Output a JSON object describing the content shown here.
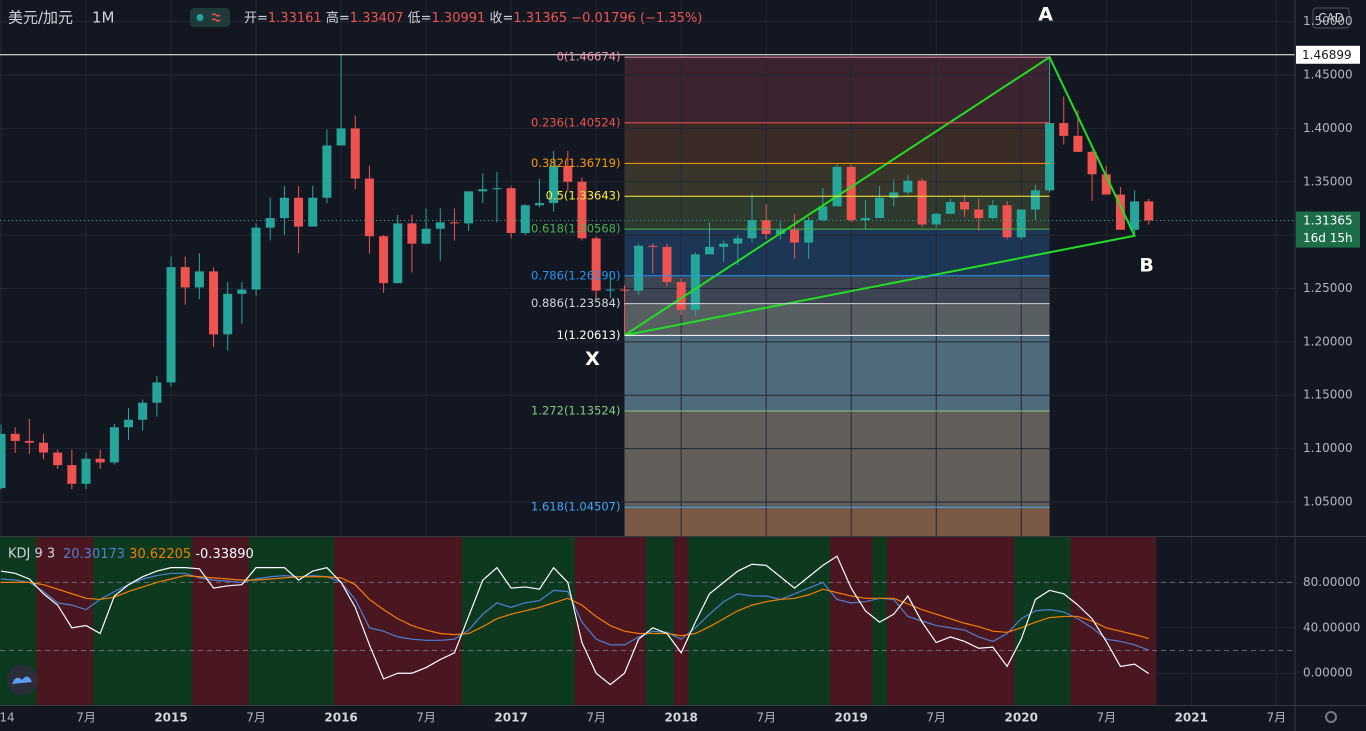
{
  "header": {
    "symbol": "美元/加元",
    "interval": "1M",
    "ohlc_labels": [
      "开=",
      "高=",
      "低=",
      "收="
    ],
    "change": "−0.01796 (−1.35%)"
  },
  "chart": {
    "type": "candlestick",
    "up_color": "#26a69a",
    "down_color": "#ef5350",
    "candles": [
      [
        1.063,
        1.1224,
        1.0615,
        1.1138
      ],
      [
        1.1138,
        1.12,
        1.096,
        1.1072
      ],
      [
        1.1072,
        1.1278,
        1.095,
        1.1055
      ],
      [
        1.1055,
        1.114,
        1.09,
        1.0963
      ],
      [
        1.0963,
        1.099,
        1.081,
        1.0845
      ],
      [
        1.0845,
        1.099,
        1.062,
        1.067
      ],
      [
        1.067,
        1.096,
        1.062,
        1.0905
      ],
      [
        1.0905,
        1.099,
        1.081,
        1.087
      ],
      [
        1.087,
        1.123,
        1.085,
        1.12
      ],
      [
        1.12,
        1.138,
        1.108,
        1.127
      ],
      [
        1.127,
        1.146,
        1.117,
        1.143
      ],
      [
        1.143,
        1.168,
        1.13,
        1.162
      ],
      [
        1.162,
        1.28,
        1.158,
        1.27
      ],
      [
        1.27,
        1.28,
        1.235,
        1.251
      ],
      [
        1.251,
        1.283,
        1.24,
        1.266
      ],
      [
        1.266,
        1.27,
        1.195,
        1.207
      ],
      [
        1.207,
        1.256,
        1.192,
        1.245
      ],
      [
        1.245,
        1.256,
        1.217,
        1.249
      ],
      [
        1.249,
        1.311,
        1.243,
        1.307
      ],
      [
        1.307,
        1.335,
        1.295,
        1.316
      ],
      [
        1.316,
        1.346,
        1.3,
        1.335
      ],
      [
        1.335,
        1.346,
        1.283,
        1.308
      ],
      [
        1.308,
        1.346,
        1.308,
        1.335
      ],
      [
        1.335,
        1.399,
        1.33,
        1.384
      ],
      [
        1.384,
        1.469,
        1.384,
        1.4
      ],
      [
        1.4,
        1.412,
        1.343,
        1.353
      ],
      [
        1.353,
        1.365,
        1.283,
        1.299
      ],
      [
        1.299,
        1.3,
        1.246,
        1.255
      ],
      [
        1.255,
        1.319,
        1.255,
        1.311
      ],
      [
        1.311,
        1.319,
        1.265,
        1.292
      ],
      [
        1.292,
        1.325,
        1.292,
        1.306
      ],
      [
        1.306,
        1.325,
        1.276,
        1.312
      ],
      [
        1.312,
        1.325,
        1.295,
        1.311
      ],
      [
        1.311,
        1.34,
        1.304,
        1.341
      ],
      [
        1.341,
        1.358,
        1.33,
        1.343
      ],
      [
        1.343,
        1.359,
        1.312,
        1.344
      ],
      [
        1.344,
        1.346,
        1.297,
        1.302
      ],
      [
        1.302,
        1.329,
        1.3,
        1.328
      ],
      [
        1.328,
        1.353,
        1.326,
        1.33
      ],
      [
        1.33,
        1.379,
        1.322,
        1.365
      ],
      [
        1.365,
        1.379,
        1.342,
        1.35
      ],
      [
        1.35,
        1.354,
        1.295,
        1.297
      ],
      [
        1.297,
        1.299,
        1.241,
        1.248
      ],
      [
        1.248,
        1.266,
        1.241,
        1.249
      ],
      [
        1.249,
        1.253,
        1.2061,
        1.248
      ],
      [
        1.248,
        1.292,
        1.244,
        1.29
      ],
      [
        1.29,
        1.292,
        1.264,
        1.289
      ],
      [
        1.289,
        1.292,
        1.252,
        1.256
      ],
      [
        1.256,
        1.26,
        1.225,
        1.23
      ],
      [
        1.23,
        1.284,
        1.225,
        1.282
      ],
      [
        1.282,
        1.312,
        1.282,
        1.289
      ],
      [
        1.289,
        1.295,
        1.275,
        1.292
      ],
      [
        1.292,
        1.3,
        1.272,
        1.297
      ],
      [
        1.297,
        1.339,
        1.293,
        1.314
      ],
      [
        1.314,
        1.329,
        1.296,
        1.301
      ],
      [
        1.301,
        1.313,
        1.296,
        1.305
      ],
      [
        1.305,
        1.32,
        1.278,
        1.293
      ],
      [
        1.293,
        1.317,
        1.278,
        1.314
      ],
      [
        1.314,
        1.344,
        1.313,
        1.327
      ],
      [
        1.327,
        1.366,
        1.327,
        1.364
      ],
      [
        1.364,
        1.366,
        1.312,
        1.314
      ],
      [
        1.314,
        1.333,
        1.306,
        1.316
      ],
      [
        1.316,
        1.346,
        1.316,
        1.335
      ],
      [
        1.335,
        1.352,
        1.327,
        1.34
      ],
      [
        1.34,
        1.356,
        1.338,
        1.351
      ],
      [
        1.351,
        1.353,
        1.308,
        1.31
      ],
      [
        1.31,
        1.321,
        1.307,
        1.32
      ],
      [
        1.32,
        1.334,
        1.32,
        1.331
      ],
      [
        1.331,
        1.338,
        1.317,
        1.324
      ],
      [
        1.324,
        1.334,
        1.304,
        1.316
      ],
      [
        1.316,
        1.333,
        1.315,
        1.328
      ],
      [
        1.328,
        1.332,
        1.296,
        1.298
      ],
      [
        1.298,
        1.324,
        1.296,
        1.324
      ],
      [
        1.324,
        1.347,
        1.314,
        1.342
      ],
      [
        1.342,
        1.4667,
        1.34,
        1.405
      ],
      [
        1.405,
        1.43,
        1.385,
        1.393
      ],
      [
        1.393,
        1.417,
        1.378,
        1.378
      ],
      [
        1.378,
        1.38,
        1.332,
        1.357
      ],
      [
        1.357,
        1.365,
        1.338,
        1.338
      ],
      [
        1.338,
        1.345,
        1.305,
        1.305
      ],
      [
        1.305,
        1.342,
        1.2994,
        1.3316
      ],
      [
        1.33161,
        1.33407,
        1.30991,
        1.31365
      ]
    ],
    "ylim": [
      1.0181,
      1.5203
    ],
    "yticks": [
      {
        "value": 1.5,
        "label": "1.50000"
      },
      {
        "value": 1.45,
        "label": "1.45000"
      },
      {
        "value": 1.4,
        "label": "1.40000"
      },
      {
        "value": 1.35,
        "label": "1.35000"
      },
      {
        "value": 1.3,
        "label": "1.30000"
      },
      {
        "value": 1.25,
        "label": "1.25000"
      },
      {
        "value": 1.2,
        "label": "1.20000"
      },
      {
        "value": 1.15,
        "label": "1.15000"
      },
      {
        "value": 1.1,
        "label": "1.10000"
      },
      {
        "value": 1.05,
        "label": "1.05000"
      }
    ],
    "xticks": [
      {
        "value": 0,
        "label": "14"
      },
      {
        "value": 6,
        "label": "7月"
      },
      {
        "value": 12,
        "label": "2015"
      },
      {
        "value": 18,
        "label": "7月"
      },
      {
        "value": 24,
        "label": "2016"
      },
      {
        "value": 30,
        "label": "7月"
      },
      {
        "value": 36,
        "label": "2017"
      },
      {
        "value": 42,
        "label": "7月"
      },
      {
        "value": 48,
        "label": "2018"
      },
      {
        "value": 54,
        "label": "7月"
      },
      {
        "value": 60,
        "label": "2019"
      },
      {
        "value": 66,
        "label": "7月"
      },
      {
        "value": 72,
        "label": "2020"
      },
      {
        "value": 78,
        "label": "7月"
      },
      {
        "value": 84,
        "label": "2021"
      },
      {
        "value": 90,
        "label": "7月"
      }
    ],
    "currency": "CAD",
    "crosshair": 1.46899,
    "countdown": "16d 15h",
    "fib": {
      "start": 44,
      "end": 74,
      "below_fill": "#7a5a46",
      "levels": [
        {
          "label": "0(1.46674)",
          "value": 1.46674,
          "color": "#f48fb1",
          "fill": "#3b2330"
        },
        {
          "label": "0.236(1.40524)",
          "value": 1.40524,
          "color": "#f05350",
          "fill": "#3b2330"
        },
        {
          "label": "0.382(1.36719)",
          "value": 1.36719,
          "color": "#ff9800",
          "fill": "#3a2b26"
        },
        {
          "label": "0.5(1.33643)",
          "value": 1.33643,
          "color": "#ffeb3b",
          "fill": "#38362a"
        },
        {
          "label": "0.618(1.30568)",
          "value": 1.30568,
          "color": "#4caf50",
          "fill": "#2e3a2d"
        },
        {
          "label": "0.786(1.26190)",
          "value": 1.2619,
          "color": "#2196f3",
          "fill": "#1d3655"
        },
        {
          "label": "0.886(1.23584)",
          "value": 1.23584,
          "color": "#d1d4dc",
          "fill": "#3d4552"
        },
        {
          "label": "1(1.20613)",
          "value": 1.20613,
          "color": "#ffffff",
          "fill": "#585f63"
        },
        {
          "label": "1.272(1.13524)",
          "value": 1.13524,
          "color": "#81c784",
          "fill": "#4f6b7b"
        },
        {
          "label": "1.618(1.04507)",
          "value": 1.04507,
          "color": "#42a5f5",
          "fill": "#625e59"
        }
      ]
    },
    "pattern": {
      "color": "#22dd22",
      "points": [
        {
          "label": "X",
          "index": 44,
          "value": 1.20613
        },
        {
          "label": "A",
          "index": 74,
          "value": 1.46674
        },
        {
          "label": "B",
          "index": 80,
          "value": 1.2994
        }
      ]
    },
    "kdj": {
      "title": "KDJ 9 3",
      "header_values": [
        "20.30173",
        "30.62205",
        "-0.33890"
      ],
      "ylim": [
        -28,
        120
      ],
      "yticks": [
        {
          "value": 80,
          "label": "80.00000"
        },
        {
          "value": 40,
          "label": "40.00000"
        },
        {
          "value": 0,
          "label": "0.00000"
        }
      ],
      "bands": [
        80,
        20
      ],
      "up_fill": "#0d3a1f",
      "down_fill": "#4a1620",
      "series": [
        {
          "color": "#4d7fd6",
          "values": [
            83,
            82,
            80,
            72,
            62,
            60,
            56,
            65,
            72,
            78,
            83,
            86,
            88,
            88,
            84,
            82,
            81,
            80,
            83,
            85,
            86,
            85,
            86,
            85,
            80,
            65,
            40,
            37,
            32,
            30,
            29,
            29,
            30,
            38,
            52,
            62,
            58,
            62,
            64,
            73,
            72,
            45,
            30,
            25,
            25,
            32,
            37,
            36,
            30,
            40,
            52,
            63,
            70,
            68,
            68,
            65,
            70,
            75,
            80,
            65,
            62,
            63,
            66,
            65,
            50,
            46,
            42,
            40,
            38,
            32,
            28,
            35,
            48,
            55,
            56,
            54,
            48,
            40,
            30,
            28,
            25,
            20.30173
          ]
        },
        {
          "color": "#f57c00",
          "values": [
            80,
            80,
            80,
            78,
            74,
            70,
            66,
            65,
            67,
            72,
            76,
            80,
            83,
            86,
            85,
            84,
            83,
            82,
            82,
            83,
            84,
            85,
            85,
            85,
            84,
            78,
            65,
            56,
            48,
            42,
            38,
            35,
            34,
            35,
            41,
            48,
            52,
            55,
            58,
            62,
            66,
            60,
            50,
            42,
            37,
            35,
            35,
            35,
            33,
            35,
            41,
            48,
            55,
            60,
            63,
            65,
            66,
            69,
            74,
            71,
            68,
            66,
            66,
            66,
            61,
            56,
            52,
            48,
            44,
            41,
            37,
            36,
            40,
            45,
            49,
            50,
            50,
            46,
            40,
            37,
            34,
            30.62205
          ]
        },
        {
          "color": "#ffffff",
          "values": [
            90,
            88,
            83,
            70,
            60,
            40,
            42,
            35,
            68,
            78,
            85,
            90,
            93,
            93,
            92,
            75,
            77,
            78,
            93,
            93,
            93,
            82,
            90,
            93,
            80,
            58,
            25,
            -5,
            0,
            0,
            5,
            12,
            18,
            50,
            82,
            93,
            75,
            76,
            74,
            93,
            80,
            27,
            0,
            -10,
            0,
            30,
            40,
            35,
            18,
            45,
            70,
            80,
            90,
            96,
            95,
            85,
            75,
            85,
            95,
            103,
            75,
            55,
            45,
            52,
            68,
            45,
            27,
            32,
            28,
            22,
            23,
            6,
            30,
            65,
            73,
            70,
            60,
            48,
            28,
            6,
            8,
            -0.3389
          ]
        }
      ]
    }
  }
}
